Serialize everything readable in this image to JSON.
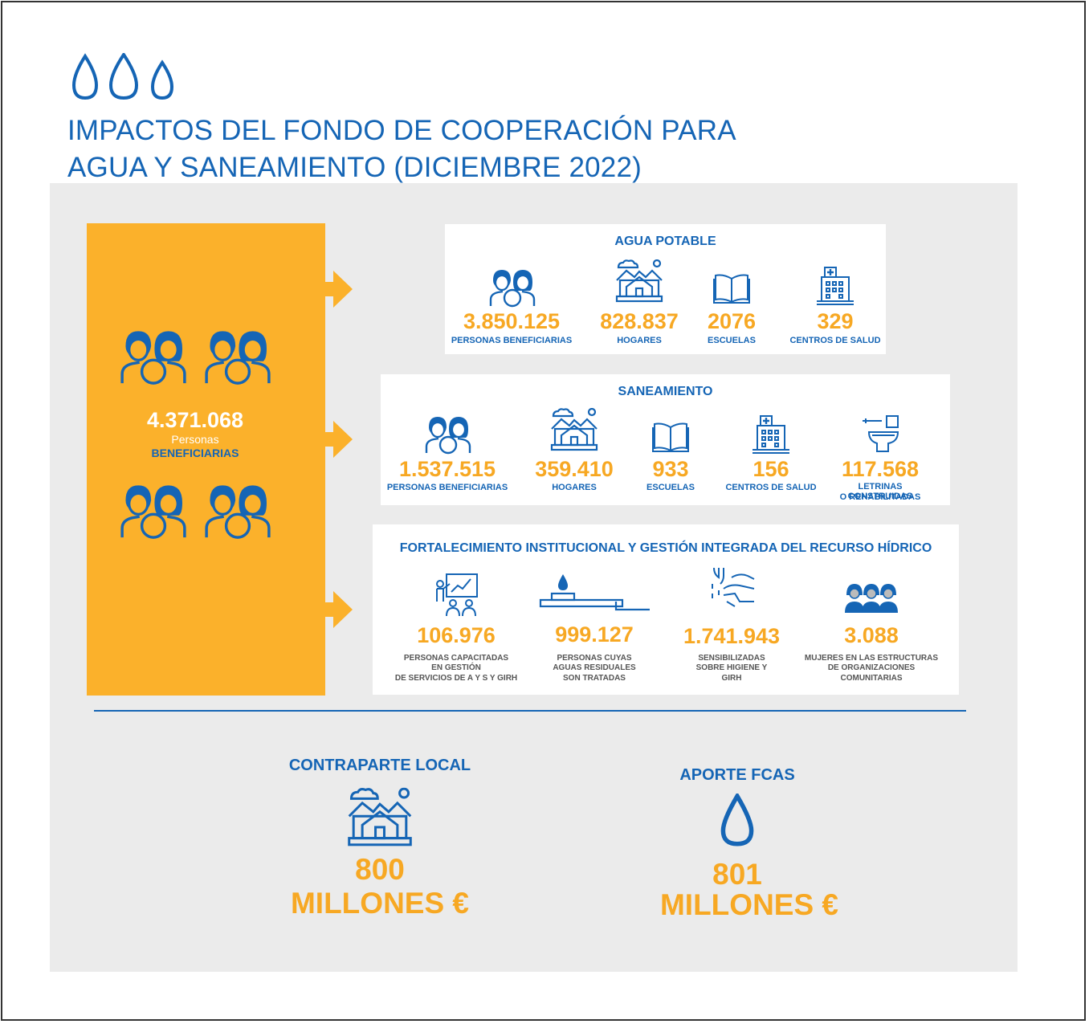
{
  "header": {
    "title_line1": "IMPACTOS DEL FONDO DE COOPERACIÓN PARA",
    "title_line2": "AGUA Y SANEAMIENTO (DICIEMBRE 2022)",
    "icon": "water-drops-icon"
  },
  "total": {
    "value": "4.371.068",
    "sub": "Personas",
    "label": "BENEFICIARIAS",
    "icon": "people-group-icon"
  },
  "agua_potable": {
    "title": "AGUA POTABLE",
    "stats": [
      {
        "icon": "people-icon",
        "value": "3.850.125",
        "label": "PERSONAS BENEFICIARIAS"
      },
      {
        "icon": "house-icon",
        "value": "828.837",
        "label": "HOGARES"
      },
      {
        "icon": "book-icon",
        "value": "2076",
        "label": "ESCUELAS"
      },
      {
        "icon": "hospital-icon",
        "value": "329",
        "label": "CENTROS DE SALUD"
      }
    ]
  },
  "saneamiento": {
    "title": "SANEAMIENTO",
    "stats": [
      {
        "icon": "people-icon",
        "value": "1.537.515",
        "label": "PERSONAS BENEFICIARIAS"
      },
      {
        "icon": "house-icon",
        "value": "359.410",
        "label": "HOGARES"
      },
      {
        "icon": "book-icon",
        "value": "933",
        "label": "ESCUELAS"
      },
      {
        "icon": "hospital-icon",
        "value": "156",
        "label": "CENTROS DE SALUD"
      },
      {
        "icon": "toilet-icon",
        "value": "117.568",
        "label_line1": "LETRINAS CONSTRUIDAS",
        "label_line2": "O REHABILITADAS"
      }
    ]
  },
  "fortalecimiento": {
    "title": "FORTALECIMIENTO INSTITUCIONAL Y GESTIÓN INTEGRADA DEL RECURSO HÍDRICO",
    "stats": [
      {
        "icon": "training-icon",
        "value": "106.976",
        "label_line1": "PERSONAS CAPACITADAS",
        "label_line2": "EN GESTIÓN",
        "label_line3": "DE SERVICIOS DE A Y S Y GIRH"
      },
      {
        "icon": "water-treatment-icon",
        "value": "999.127",
        "label_line1": "PERSONAS CUYAS",
        "label_line2": "AGUAS RESIDUALES",
        "label_line3": "SON TRATADAS"
      },
      {
        "icon": "handwashing-icon",
        "value": "1.741.943",
        "label_line1": "SENSIBILIZADAS",
        "label_line2": "SOBRE HIGIENE Y",
        "label_line3": "GIRH"
      },
      {
        "icon": "women-group-icon",
        "value": "3.088",
        "label_line1": "MUJERES EN LAS ESTRUCTURAS",
        "label_line2": "DE ORGANIZACIONES",
        "label_line3": "COMUNITARIAS"
      }
    ]
  },
  "funding": {
    "local": {
      "title": "CONTRAPARTE LOCAL",
      "amount": "800",
      "unit": "MILLONES €",
      "icon": "house-icon"
    },
    "fcas": {
      "title": "APORTE FCAS",
      "amount": "801",
      "unit": "MILLONES €",
      "icon": "water-drop-icon"
    }
  },
  "colors": {
    "blue": "#1565b5",
    "orange": "#fbb12b",
    "grey": "#ebebeb"
  }
}
